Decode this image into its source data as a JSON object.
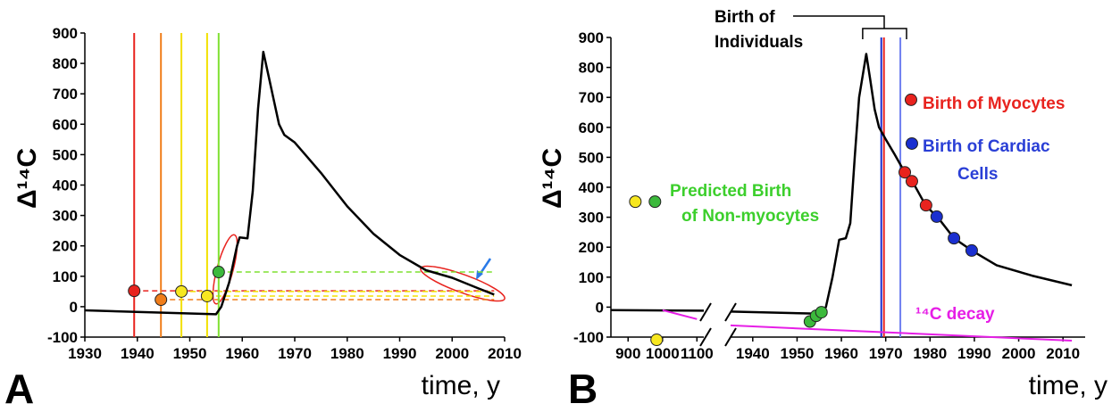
{
  "chart_data": [
    {
      "type": "line",
      "panel_label": "A",
      "xlabel": "time, y",
      "ylabel": "Δ¹⁴C",
      "xlim": [
        1930,
        2010
      ],
      "xticks": [
        1930,
        1940,
        1950,
        1960,
        1970,
        1980,
        1990,
        2000,
        2010
      ],
      "ylim": [
        -100,
        900
      ],
      "yticks": [
        -100,
        0,
        100,
        200,
        300,
        400,
        500,
        600,
        700,
        800,
        900
      ],
      "series": [
        {
          "color": "#000000",
          "x": [
            1930,
            1955,
            1956,
            1957.5,
            1959,
            1959.5,
            1961,
            1962,
            1963,
            1964,
            1965,
            1966,
            1967,
            1968,
            1970,
            1972,
            1975,
            1980,
            1985,
            1990,
            1995,
            2000,
            2005,
            2008
          ],
          "values": [
            -12,
            -25,
            0,
            80,
            200,
            228,
            225,
            380,
            650,
            838,
            760,
            680,
            600,
            565,
            540,
            500,
            440,
            330,
            240,
            170,
            120,
            95,
            60,
            40
          ]
        }
      ],
      "markers": [
        {
          "x": 1939.4,
          "y": 52,
          "color": "#e8231e",
          "line_color": "#e8231e"
        },
        {
          "x": 1944.5,
          "y": 23,
          "color": "#f07d1a",
          "line_color": "#f07d1a"
        },
        {
          "x": 1948.4,
          "y": 50,
          "color": "#f7e71f",
          "line_color": "#f2e000"
        },
        {
          "x": 1953.3,
          "y": 35,
          "color": "#f7e71f",
          "line_color": "#f2e000"
        },
        {
          "x": 1955.5,
          "y": 114,
          "color": "#3cb93c",
          "line_color": "#7fe031"
        }
      ],
      "dash_end": 2008
    },
    {
      "type": "line",
      "panel_label": "B",
      "xlabel": "time, y",
      "ylabel": "Δ¹⁴C",
      "xlim": [
        850,
        2015
      ],
      "x_break": [
        1120,
        1935
      ],
      "xticks": [
        900,
        1000,
        1100,
        1940,
        1950,
        1960,
        1970,
        1980,
        1990,
        2000,
        2010
      ],
      "ylim": [
        -100,
        900
      ],
      "yticks": [
        -100,
        0,
        100,
        200,
        300,
        400,
        500,
        600,
        700,
        800,
        900
      ],
      "series": [
        {
          "color": "#000000",
          "x": [
            850,
            1120,
            null,
            1935,
            1955,
            1956.5,
            1958,
            1959.5,
            1961,
            1962,
            1963,
            1964,
            1965.6,
            1966.5,
            1967.5,
            1968.5,
            1970,
            1972,
            1974.3,
            1976,
            1979,
            1982,
            1985.4,
            1989.4,
            1995,
            2003,
            2012
          ],
          "values": [
            -10,
            -12,
            null,
            -15,
            -22,
            0,
            100,
            225,
            230,
            280,
            500,
            700,
            845,
            760,
            660,
            600,
            560,
            510,
            450,
            420,
            340,
            295,
            230,
            189,
            140,
            105,
            73
          ]
        },
        {
          "name": "¹⁴C decay",
          "color": "#e61ee6",
          "x": [
            1000,
            1100,
            null,
            1935,
            2012
          ],
          "values": [
            -10,
            -40,
            null,
            -61,
            -112
          ]
        }
      ],
      "markers": [
        {
          "x": 921,
          "y": 352,
          "color": "#f7e71f"
        },
        {
          "x": 978,
          "y": 352,
          "color": "#3cb93c"
        },
        {
          "x": 983,
          "y": -109,
          "color": "#f7e71f"
        },
        {
          "x": 1952.9,
          "y": -48,
          "color": "#3cb93c"
        },
        {
          "x": 1954.3,
          "y": -29,
          "color": "#3cb93c"
        },
        {
          "x": 1955.5,
          "y": -17,
          "color": "#3cb93c"
        },
        {
          "x": 1974.3,
          "y": 450,
          "color": "#e8231e"
        },
        {
          "x": 1975.9,
          "y": 420,
          "color": "#e8231e"
        },
        {
          "x": 1979.1,
          "y": 340,
          "color": "#e8231e"
        },
        {
          "x": 1981.5,
          "y": 302,
          "color": "#1a2fd0"
        },
        {
          "x": 1985.4,
          "y": 230,
          "color": "#1a2fd0"
        },
        {
          "x": 1989.4,
          "y": 189,
          "color": "#1a2fd0"
        },
        {
          "x": 1975.7,
          "y": 692,
          "color": "#e8231e"
        },
        {
          "x": 1975.9,
          "y": 546,
          "color": "#1a2fd0"
        }
      ],
      "vlines": [
        {
          "x": 1969,
          "color": "#1a2fd0"
        },
        {
          "x": 1969.6,
          "color": "#e8231e"
        },
        {
          "x": 1973.3,
          "color": "#6f7ff0"
        }
      ],
      "bracket": [
        1964.8,
        1974.7
      ],
      "annotations": [
        "Birth of",
        "Individuals",
        "Birth of Myocytes",
        "Birth of Cardiac",
        "Cells",
        "Predicted Birth",
        "of Non-myocytes"
      ]
    }
  ]
}
